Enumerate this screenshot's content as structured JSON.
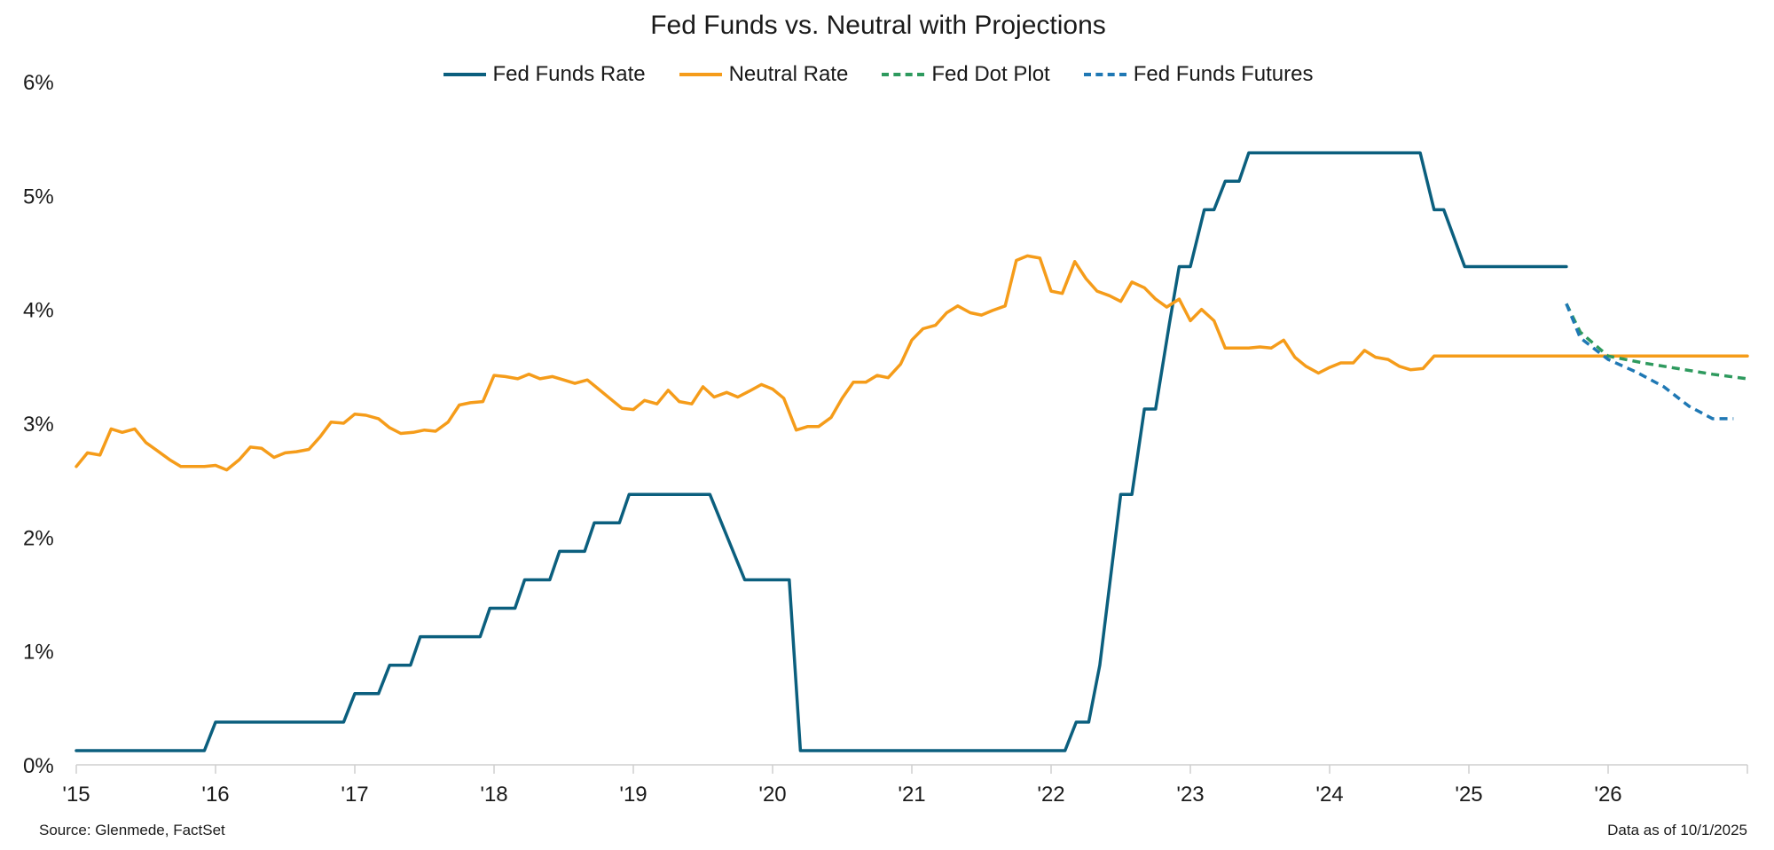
{
  "chart_data": {
    "type": "line",
    "title": "Fed Funds vs. Neutral with Projections",
    "xlabel": "",
    "ylabel": "",
    "xlim": [
      2015.0,
      2027.0
    ],
    "ylim": [
      0,
      6
    ],
    "x_ticks": [
      {
        "value": 2015,
        "label": "'15"
      },
      {
        "value": 2016,
        "label": "'16"
      },
      {
        "value": 2017,
        "label": "'17"
      },
      {
        "value": 2018,
        "label": "'18"
      },
      {
        "value": 2019,
        "label": "'19"
      },
      {
        "value": 2020,
        "label": "'20"
      },
      {
        "value": 2021,
        "label": "'21"
      },
      {
        "value": 2022,
        "label": "'22"
      },
      {
        "value": 2023,
        "label": "'23"
      },
      {
        "value": 2024,
        "label": "'24"
      },
      {
        "value": 2025,
        "label": "'25"
      },
      {
        "value": 2026,
        "label": "'26"
      }
    ],
    "y_ticks": [
      {
        "value": 0,
        "label": "0%"
      },
      {
        "value": 1,
        "label": "1%"
      },
      {
        "value": 2,
        "label": "2%"
      },
      {
        "value": 3,
        "label": "3%"
      },
      {
        "value": 4,
        "label": "4%"
      },
      {
        "value": 5,
        "label": "5%"
      },
      {
        "value": 6,
        "label": "6%"
      }
    ],
    "grid": false,
    "legend_position": "top-center",
    "series": [
      {
        "name": "Fed Funds Rate",
        "color": "#0b5f7e",
        "style": "solid",
        "points": [
          [
            2015.0,
            0.125
          ],
          [
            2015.92,
            0.125
          ],
          [
            2016.0,
            0.375
          ],
          [
            2016.92,
            0.375
          ],
          [
            2017.0,
            0.625
          ],
          [
            2017.17,
            0.625
          ],
          [
            2017.25,
            0.875
          ],
          [
            2017.4,
            0.875
          ],
          [
            2017.47,
            1.125
          ],
          [
            2017.9,
            1.125
          ],
          [
            2017.97,
            1.375
          ],
          [
            2018.15,
            1.375
          ],
          [
            2018.22,
            1.625
          ],
          [
            2018.4,
            1.625
          ],
          [
            2018.47,
            1.875
          ],
          [
            2018.65,
            1.875
          ],
          [
            2018.72,
            2.125
          ],
          [
            2018.9,
            2.125
          ],
          [
            2018.97,
            2.375
          ],
          [
            2019.55,
            2.375
          ],
          [
            2019.8,
            1.625
          ],
          [
            2020.12,
            1.625
          ],
          [
            2020.2,
            0.125
          ],
          [
            2022.1,
            0.125
          ],
          [
            2022.18,
            0.375
          ],
          [
            2022.27,
            0.375
          ],
          [
            2022.35,
            0.875
          ],
          [
            2022.5,
            2.375
          ],
          [
            2022.58,
            2.375
          ],
          [
            2022.67,
            3.125
          ],
          [
            2022.75,
            3.125
          ],
          [
            2022.85,
            3.875
          ],
          [
            2022.92,
            4.375
          ],
          [
            2023.0,
            4.375
          ],
          [
            2023.1,
            4.875
          ],
          [
            2023.17,
            4.875
          ],
          [
            2023.25,
            5.125
          ],
          [
            2023.35,
            5.125
          ],
          [
            2023.42,
            5.375
          ],
          [
            2024.65,
            5.375
          ],
          [
            2024.75,
            4.875
          ],
          [
            2024.82,
            4.875
          ],
          [
            2024.97,
            4.375
          ],
          [
            2025.7,
            4.375
          ]
        ]
      },
      {
        "name": "Neutral Rate",
        "color": "#f59c1a",
        "style": "solid",
        "points": [
          [
            2015.0,
            2.62
          ],
          [
            2015.08,
            2.74
          ],
          [
            2015.17,
            2.72
          ],
          [
            2015.25,
            2.95
          ],
          [
            2015.33,
            2.92
          ],
          [
            2015.42,
            2.95
          ],
          [
            2015.5,
            2.83
          ],
          [
            2015.58,
            2.76
          ],
          [
            2015.67,
            2.68
          ],
          [
            2015.75,
            2.62
          ],
          [
            2015.83,
            2.62
          ],
          [
            2015.92,
            2.62
          ],
          [
            2016.0,
            2.63
          ],
          [
            2016.08,
            2.59
          ],
          [
            2016.17,
            2.68
          ],
          [
            2016.25,
            2.79
          ],
          [
            2016.33,
            2.78
          ],
          [
            2016.42,
            2.7
          ],
          [
            2016.5,
            2.74
          ],
          [
            2016.58,
            2.75
          ],
          [
            2016.67,
            2.77
          ],
          [
            2016.75,
            2.88
          ],
          [
            2016.83,
            3.01
          ],
          [
            2016.92,
            3.0
          ],
          [
            2017.0,
            3.08
          ],
          [
            2017.08,
            3.07
          ],
          [
            2017.17,
            3.04
          ],
          [
            2017.25,
            2.96
          ],
          [
            2017.33,
            2.91
          ],
          [
            2017.42,
            2.92
          ],
          [
            2017.5,
            2.94
          ],
          [
            2017.58,
            2.93
          ],
          [
            2017.67,
            3.01
          ],
          [
            2017.75,
            3.16
          ],
          [
            2017.83,
            3.18
          ],
          [
            2017.92,
            3.19
          ],
          [
            2018.0,
            3.42
          ],
          [
            2018.08,
            3.41
          ],
          [
            2018.17,
            3.39
          ],
          [
            2018.25,
            3.43
          ],
          [
            2018.33,
            3.39
          ],
          [
            2018.42,
            3.41
          ],
          [
            2018.5,
            3.38
          ],
          [
            2018.58,
            3.35
          ],
          [
            2018.67,
            3.38
          ],
          [
            2018.75,
            3.3
          ],
          [
            2018.83,
            3.22
          ],
          [
            2018.92,
            3.13
          ],
          [
            2019.0,
            3.12
          ],
          [
            2019.08,
            3.2
          ],
          [
            2019.17,
            3.17
          ],
          [
            2019.25,
            3.29
          ],
          [
            2019.33,
            3.19
          ],
          [
            2019.42,
            3.17
          ],
          [
            2019.5,
            3.32
          ],
          [
            2019.58,
            3.23
          ],
          [
            2019.67,
            3.27
          ],
          [
            2019.75,
            3.23
          ],
          [
            2019.83,
            3.28
          ],
          [
            2019.92,
            3.34
          ],
          [
            2020.0,
            3.3
          ],
          [
            2020.08,
            3.22
          ],
          [
            2020.17,
            2.94
          ],
          [
            2020.25,
            2.97
          ],
          [
            2020.33,
            2.97
          ],
          [
            2020.42,
            3.05
          ],
          [
            2020.5,
            3.22
          ],
          [
            2020.58,
            3.36
          ],
          [
            2020.67,
            3.36
          ],
          [
            2020.75,
            3.42
          ],
          [
            2020.83,
            3.4
          ],
          [
            2020.92,
            3.52
          ],
          [
            2021.0,
            3.73
          ],
          [
            2021.08,
            3.83
          ],
          [
            2021.17,
            3.86
          ],
          [
            2021.25,
            3.97
          ],
          [
            2021.33,
            4.03
          ],
          [
            2021.42,
            3.97
          ],
          [
            2021.5,
            3.95
          ],
          [
            2021.58,
            3.99
          ],
          [
            2021.67,
            4.03
          ],
          [
            2021.75,
            4.43
          ],
          [
            2021.83,
            4.47
          ],
          [
            2021.92,
            4.45
          ],
          [
            2022.0,
            4.16
          ],
          [
            2022.08,
            4.14
          ],
          [
            2022.17,
            4.42
          ],
          [
            2022.25,
            4.27
          ],
          [
            2022.33,
            4.16
          ],
          [
            2022.42,
            4.12
          ],
          [
            2022.5,
            4.07
          ],
          [
            2022.58,
            4.24
          ],
          [
            2022.67,
            4.19
          ],
          [
            2022.75,
            4.09
          ],
          [
            2022.83,
            4.02
          ],
          [
            2022.92,
            4.09
          ],
          [
            2023.0,
            3.9
          ],
          [
            2023.08,
            4.0
          ],
          [
            2023.17,
            3.9
          ],
          [
            2023.25,
            3.66
          ],
          [
            2023.33,
            3.66
          ],
          [
            2023.42,
            3.66
          ],
          [
            2023.5,
            3.67
          ],
          [
            2023.58,
            3.66
          ],
          [
            2023.67,
            3.73
          ],
          [
            2023.75,
            3.58
          ],
          [
            2023.83,
            3.5
          ],
          [
            2023.92,
            3.44
          ],
          [
            2024.0,
            3.49
          ],
          [
            2024.08,
            3.53
          ],
          [
            2024.17,
            3.53
          ],
          [
            2024.25,
            3.64
          ],
          [
            2024.33,
            3.58
          ],
          [
            2024.42,
            3.56
          ],
          [
            2024.5,
            3.5
          ],
          [
            2024.58,
            3.47
          ],
          [
            2024.67,
            3.48
          ],
          [
            2024.75,
            3.59
          ],
          [
            2027.0,
            3.59
          ]
        ]
      },
      {
        "name": "Fed Dot Plot",
        "color": "#2e9a5e",
        "style": "dashed",
        "points": [
          [
            2025.7,
            4.05
          ],
          [
            2025.8,
            3.8
          ],
          [
            2026.0,
            3.59
          ],
          [
            2026.25,
            3.53
          ],
          [
            2026.5,
            3.48
          ],
          [
            2026.75,
            3.43
          ],
          [
            2027.0,
            3.39
          ]
        ]
      },
      {
        "name": "Fed Funds Futures",
        "color": "#1f78b4",
        "style": "dashed",
        "points": [
          [
            2025.7,
            4.05
          ],
          [
            2025.8,
            3.75
          ],
          [
            2026.0,
            3.56
          ],
          [
            2026.2,
            3.45
          ],
          [
            2026.4,
            3.32
          ],
          [
            2026.58,
            3.15
          ],
          [
            2026.75,
            3.04
          ],
          [
            2026.9,
            3.04
          ]
        ]
      }
    ]
  },
  "footer": {
    "source": "Source: Glenmede, FactSet",
    "as_of": "Data as of 10/1/2025"
  }
}
